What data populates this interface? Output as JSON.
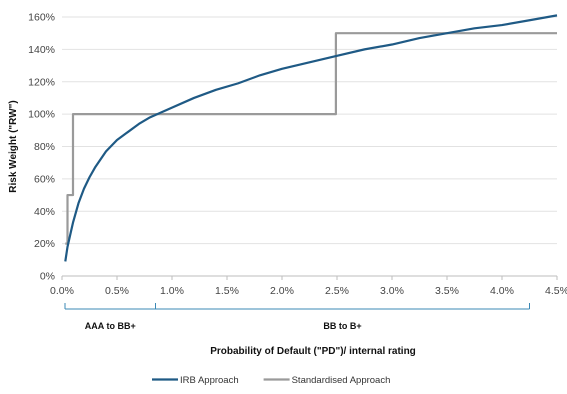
{
  "chart_data": {
    "type": "line",
    "xlabel": "Probability of Default (\"PD\")/ internal rating",
    "ylabel": "Risk Weight (\"RW\")",
    "xlim": [
      0,
      4.5
    ],
    "ylim": [
      0,
      160
    ],
    "x_ticks": [
      "0.0%",
      "0.5%",
      "1.0%",
      "1.5%",
      "2.0%",
      "2.5%",
      "3.0%",
      "3.5%",
      "4.0%",
      "4.5%"
    ],
    "y_ticks": [
      "0%",
      "20%",
      "40%",
      "60%",
      "80%",
      "100%",
      "120%",
      "140%",
      "160%"
    ],
    "grid": "horizontal",
    "legend_position": "bottom",
    "series": [
      {
        "name": "IRB Approach",
        "color": "#1f5a85",
        "x": [
          0.03,
          0.05,
          0.08,
          0.1,
          0.15,
          0.2,
          0.25,
          0.3,
          0.4,
          0.5,
          0.6,
          0.7,
          0.8,
          0.9,
          1.0,
          1.2,
          1.4,
          1.6,
          1.8,
          2.0,
          2.25,
          2.5,
          2.75,
          3.0,
          3.25,
          3.5,
          3.75,
          4.0,
          4.25,
          4.5
        ],
        "y": [
          9,
          18,
          27,
          33,
          45,
          54,
          61,
          67,
          77,
          84,
          89,
          94,
          98,
          101,
          104,
          110,
          115,
          119,
          124,
          128,
          132,
          136,
          140,
          143,
          147,
          150,
          153,
          155,
          158,
          161
        ]
      },
      {
        "name": "Standardised Approach",
        "color": "#9a9a9a",
        "x": [
          0.03,
          0.05,
          0.05,
          0.07,
          0.07,
          0.1,
          0.1,
          2.49,
          2.49,
          4.5
        ],
        "y": [
          20,
          20,
          50,
          50,
          50,
          50,
          100,
          100,
          150,
          150
        ]
      }
    ],
    "rating_bands": [
      {
        "label": "AAA to BB+",
        "from": 0.0,
        "to": 0.85
      },
      {
        "label": "BB to B+",
        "from": 0.85,
        "to": 4.25
      }
    ]
  }
}
